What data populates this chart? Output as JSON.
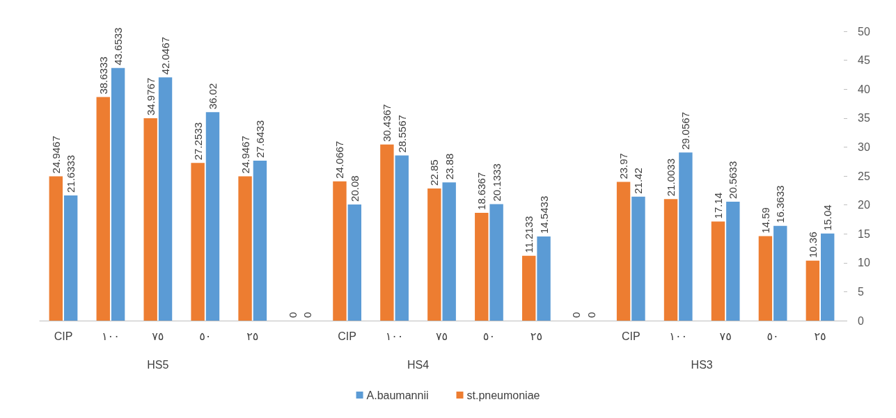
{
  "chart_data": {
    "type": "bar",
    "categories": [
      "CIP",
      "١٠٠",
      "٧٥",
      "٥٠",
      "٢٥",
      null,
      "CIP",
      "١٠٠",
      "٧٥",
      "٥٠",
      "٢٥",
      null,
      "CIP",
      "١٠٠",
      "٧٥",
      "٥٠",
      "٢٥"
    ],
    "series": [
      {
        "name": "st.pneumoniae",
        "color": "#ed7d31",
        "values": [
          24.9467,
          38.6333,
          34.9767,
          27.2533,
          24.9467,
          0,
          24.0667,
          30.4367,
          22.85,
          18.6367,
          11.2133,
          0,
          23.97,
          21.0033,
          17.14,
          14.59,
          10.36
        ]
      },
      {
        "name": "A.baumannii",
        "color": "#5b9bd5",
        "values": [
          21.6333,
          43.6533,
          42.0467,
          36.02,
          27.6433,
          0,
          20.08,
          28.5567,
          23.88,
          20.1333,
          14.5433,
          0,
          21.42,
          29.0567,
          20.5633,
          16.3633,
          15.04
        ]
      }
    ],
    "annotations": [
      "HS5",
      "HS4",
      "HS3"
    ],
    "ylim": [
      0,
      50
    ],
    "yticks": [
      0,
      5,
      10,
      15,
      20,
      25,
      30,
      35,
      40,
      45,
      50
    ],
    "grid": false,
    "legend": "bottom",
    "data_labels": true
  }
}
